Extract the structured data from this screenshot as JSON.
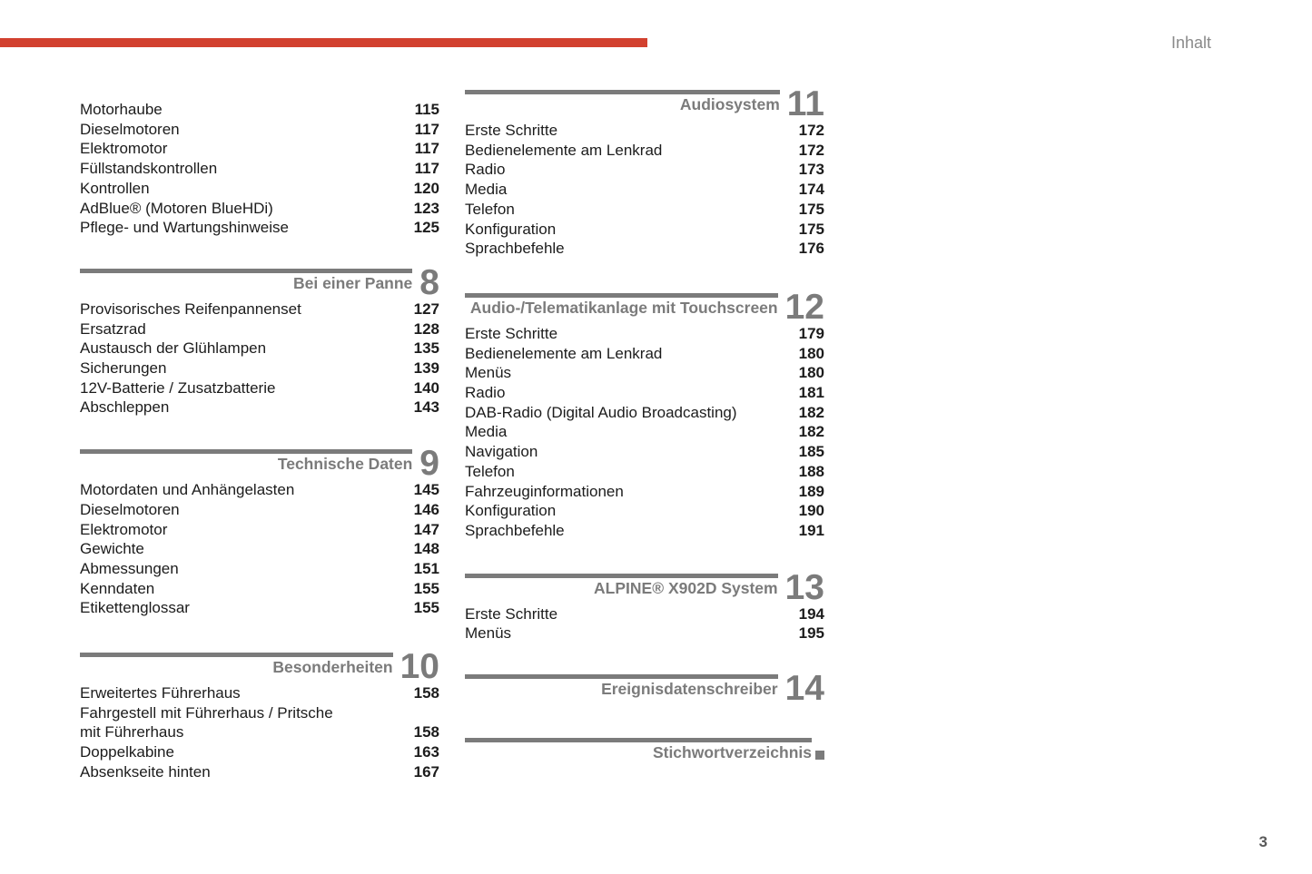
{
  "page": {
    "top_right_label": "Inhalt",
    "page_number": "3",
    "accent_color": "#d2412f",
    "muted_color": "#7b7b7b"
  },
  "columns": {
    "left": {
      "sections": [
        {
          "title": "",
          "number": "",
          "items": [
            {
              "label": "Motorhaube",
              "page": "115"
            },
            {
              "label": "Dieselmotoren",
              "page": "117"
            },
            {
              "label": "Elektromotor",
              "page": "117"
            },
            {
              "label": "Füllstandskontrollen",
              "page": "117"
            },
            {
              "label": "Kontrollen",
              "page": "120"
            },
            {
              "label": "AdBlue® (Motoren BlueHDi)",
              "page": "123"
            },
            {
              "label": "Pflege- und Wartungshinweise",
              "page": "125"
            }
          ]
        },
        {
          "title": "Bei einer Panne",
          "number": "8",
          "items": [
            {
              "label": "Provisorisches Reifenpannenset",
              "page": "127"
            },
            {
              "label": "Ersatzrad",
              "page": "128"
            },
            {
              "label": "Austausch der Glühlampen",
              "page": "135"
            },
            {
              "label": "Sicherungen",
              "page": "139"
            },
            {
              "label": "12V-Batterie / Zusatzbatterie",
              "page": "140"
            },
            {
              "label": "Abschleppen",
              "page": "143"
            }
          ]
        },
        {
          "title": "Technische Daten",
          "number": "9",
          "items": [
            {
              "label": "Motordaten und Anhängelasten",
              "page": "145"
            },
            {
              "label": "Dieselmotoren",
              "page": "146"
            },
            {
              "label": "Elektromotor",
              "page": "147"
            },
            {
              "label": "Gewichte",
              "page": "148"
            },
            {
              "label": "Abmessungen",
              "page": "151"
            },
            {
              "label": "Kenndaten",
              "page": "155"
            },
            {
              "label": "Etikettenglossar",
              "page": "155"
            }
          ]
        },
        {
          "title": "Besonderheiten",
          "number": "10",
          "items": [
            {
              "label": "Erweitertes Führerhaus",
              "page": "158"
            },
            {
              "label": "Fahrgestell mit Führerhaus / Pritsche\nmit Führerhaus",
              "page": "158"
            },
            {
              "label": "Doppelkabine",
              "page": "163"
            },
            {
              "label": "Absenkseite hinten",
              "page": "167"
            }
          ]
        }
      ]
    },
    "right": {
      "sections": [
        {
          "title": "Audiosystem",
          "number": "11",
          "items": [
            {
              "label": "Erste Schritte",
              "page": "172"
            },
            {
              "label": "Bedienelemente am Lenkrad",
              "page": "172"
            },
            {
              "label": "Radio",
              "page": "173"
            },
            {
              "label": "Media",
              "page": "174"
            },
            {
              "label": "Telefon",
              "page": "175"
            },
            {
              "label": "Konfiguration",
              "page": "175"
            },
            {
              "label": "Sprachbefehle",
              "page": "176"
            }
          ]
        },
        {
          "title": "Audio-/Telematikanlage mit Touchscreen",
          "number": "12",
          "items": [
            {
              "label": "Erste Schritte",
              "page": "179"
            },
            {
              "label": "Bedienelemente am Lenkrad",
              "page": "180"
            },
            {
              "label": "Menüs",
              "page": "180"
            },
            {
              "label": "Radio",
              "page": "181"
            },
            {
              "label": "DAB-Radio (Digital Audio Broadcasting)",
              "page": "182"
            },
            {
              "label": "Media",
              "page": "182"
            },
            {
              "label": "Navigation",
              "page": "185"
            },
            {
              "label": "Telefon",
              "page": "188"
            },
            {
              "label": "Fahrzeuginformationen",
              "page": "189"
            },
            {
              "label": "Konfiguration",
              "page": "190"
            },
            {
              "label": "Sprachbefehle",
              "page": "191"
            }
          ]
        },
        {
          "title": "ALPINE® X902D System",
          "number": "13",
          "items": [
            {
              "label": "Erste Schritte",
              "page": "194"
            },
            {
              "label": "Menüs",
              "page": "195"
            }
          ]
        },
        {
          "title": "Ereignisdatenschreiber",
          "number": "14",
          "items": []
        },
        {
          "title": "Stichwortverzeichnis",
          "marker": "square",
          "items": []
        }
      ]
    }
  }
}
